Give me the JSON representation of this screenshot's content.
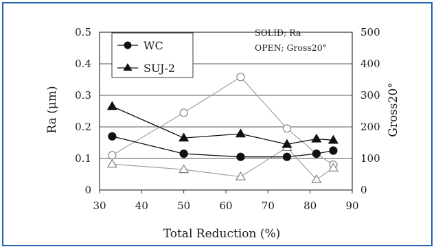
{
  "chart_data": {
    "type": "line",
    "xlabel": "Total Reduction (%)",
    "ylabel_left": "Ra (μm)",
    "ylabel_right": "Gross20°",
    "xlim": [
      30,
      90
    ],
    "x_ticks": [
      "30",
      "40",
      "50",
      "60",
      "70",
      "80",
      "90"
    ],
    "ylim_left": [
      0,
      0.5
    ],
    "y_ticks_left": [
      "0",
      "0.1",
      "0.2",
      "0.3",
      "0.4",
      "0.5"
    ],
    "ylim_right": [
      0,
      500
    ],
    "y_ticks_right": [
      "0",
      "100",
      "200",
      "300",
      "400",
      "500"
    ],
    "grid": "horizontal",
    "legend_position": "top-left",
    "annotations": [
      "SOLID; Ra",
      "OPEN; Gross20°"
    ],
    "series": [
      {
        "name": "WC",
        "marker": "circle",
        "fill": "solid",
        "axis": "left",
        "x": [
          33,
          50,
          63.5,
          74.5,
          81.5,
          85.5
        ],
        "values": [
          0.17,
          0.115,
          0.105,
          0.105,
          0.115,
          0.125
        ]
      },
      {
        "name": "SUJ-2",
        "marker": "triangle",
        "fill": "solid",
        "axis": "left",
        "x": [
          33,
          50,
          63.5,
          74.5,
          81.5,
          85.5
        ],
        "values": [
          0.265,
          0.165,
          0.178,
          0.145,
          0.162,
          0.158
        ]
      },
      {
        "marker": "circle",
        "fill": "open",
        "axis": "right",
        "x": [
          33,
          50,
          63.5,
          74.5,
          81.5,
          85.5
        ],
        "values": [
          110,
          245,
          358,
          195,
          115,
          80
        ]
      },
      {
        "marker": "triangle",
        "fill": "open",
        "axis": "right",
        "x": [
          33,
          50,
          63.5,
          74.5,
          81.5,
          85.5
        ],
        "values": [
          82,
          65,
          42,
          135,
          33,
          70
        ]
      }
    ],
    "colors": {
      "solid": "#111111",
      "open_line": "#a0a0a0",
      "open_marker": "#808080"
    }
  }
}
